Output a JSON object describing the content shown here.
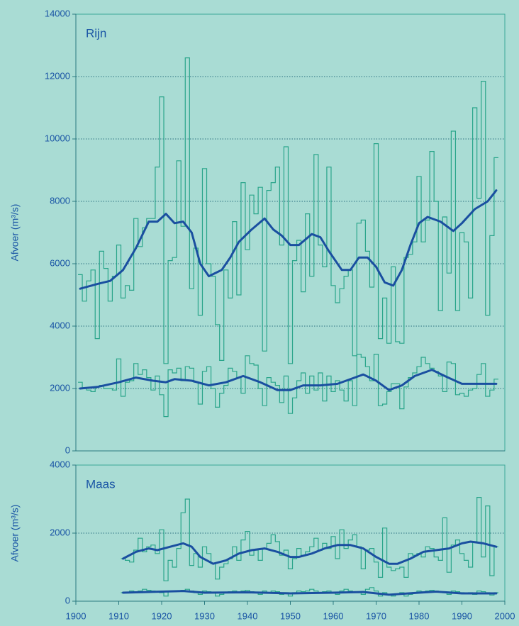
{
  "chart_data": [
    {
      "type": "line",
      "title": "Rijn",
      "ylabel": "Afvoer (m³/s)",
      "xlim": [
        1900,
        2000
      ],
      "ylim": [
        0,
        14000
      ],
      "yticks": [
        0,
        2000,
        4000,
        6000,
        8000,
        10000,
        12000,
        14000
      ],
      "grid": true,
      "series": [
        {
          "style": "step",
          "color": "#2aa58a",
          "x0": 1901,
          "values": [
            5650,
            4800,
            5450,
            5800,
            3600,
            6400,
            5850,
            4800,
            5600,
            6600,
            4900,
            5300,
            5150,
            7450,
            6550,
            7150,
            7450,
            7450,
            9100,
            11350,
            2800,
            6100,
            6200,
            9300,
            7200,
            12600,
            5200,
            6500,
            4350,
            9050,
            6000,
            5600,
            4050,
            2900,
            5800,
            4900,
            7350,
            5000,
            8600,
            6450,
            8200,
            7600,
            8450,
            3200,
            8350,
            8600,
            9100,
            6600,
            9750,
            2800,
            6100,
            6750,
            5100,
            7600,
            5600,
            9500,
            6600,
            5900,
            9100,
            5300,
            4750,
            5200,
            5600,
            5800,
            3050,
            7300,
            7400,
            6400,
            5250,
            9850,
            3600,
            4900,
            3450,
            5900,
            3500,
            3450,
            6200,
            6300,
            6700,
            8800,
            6700,
            7400,
            9600,
            8000,
            4500,
            7500,
            5700,
            10250,
            4500,
            7000,
            6700,
            4900,
            11000,
            8100,
            11850,
            4350,
            6900,
            9400
          ]
        },
        {
          "style": "step",
          "color": "#2aa58a",
          "x0": 1901,
          "values": [
            2200,
            2000,
            1950,
            1900,
            2050,
            2100,
            2000,
            2000,
            1950,
            2950,
            1750,
            2200,
            2250,
            2800,
            2450,
            2600,
            2350,
            1950,
            2400,
            1800,
            1100,
            2600,
            2500,
            2650,
            2250,
            2700,
            2650,
            2200,
            1500,
            2550,
            2700,
            2000,
            1400,
            1850,
            2100,
            2650,
            2550,
            2350,
            1850,
            3050,
            2800,
            2750,
            2000,
            1450,
            2350,
            2200,
            2100,
            1550,
            2400,
            1200,
            1700,
            2250,
            2500,
            1850,
            2400,
            1950,
            2500,
            1600,
            2400,
            1900,
            2250,
            1950,
            1600,
            2250,
            1450,
            3100,
            3000,
            2700,
            2250,
            3100,
            1450,
            1500,
            1900,
            2150,
            2150,
            1350,
            2050,
            2350,
            2500,
            2700,
            3000,
            2800,
            2650,
            2550,
            2400,
            1900,
            2850,
            2800,
            1800,
            1850,
            1750,
            1950,
            2000,
            2450,
            2800,
            1750,
            1950,
            2300
          ]
        },
        {
          "style": "smooth",
          "color": "#1a4fa0",
          "x": [
            1901,
            1905,
            1908,
            1911,
            1914,
            1917,
            1919,
            1921,
            1923,
            1925,
            1927,
            1929,
            1931,
            1934,
            1936,
            1938,
            1941,
            1944,
            1946,
            1948,
            1950,
            1952,
            1955,
            1957,
            1959,
            1962,
            1964,
            1966,
            1968,
            1970,
            1972,
            1974,
            1976,
            1978,
            1980,
            1982,
            1985,
            1988,
            1990,
            1993,
            1996,
            1998
          ],
          "values": [
            5200,
            5350,
            5450,
            5800,
            6500,
            7350,
            7350,
            7600,
            7300,
            7350,
            7000,
            6000,
            5600,
            5800,
            6200,
            6700,
            7100,
            7450,
            7100,
            6900,
            6600,
            6600,
            6950,
            6850,
            6400,
            5800,
            5800,
            6200,
            6200,
            5900,
            5400,
            5300,
            5800,
            6600,
            7300,
            7500,
            7350,
            7050,
            7300,
            7750,
            8000,
            8350
          ]
        },
        {
          "style": "smooth",
          "color": "#1a4fa0",
          "x": [
            1901,
            1905,
            1910,
            1914,
            1918,
            1921,
            1923,
            1927,
            1931,
            1935,
            1939,
            1943,
            1947,
            1950,
            1953,
            1957,
            1961,
            1963,
            1967,
            1970,
            1973,
            1976,
            1979,
            1983,
            1986,
            1990,
            1994,
            1998
          ],
          "values": [
            2000,
            2050,
            2200,
            2350,
            2250,
            2200,
            2300,
            2250,
            2100,
            2200,
            2400,
            2200,
            1950,
            1950,
            2100,
            2100,
            2150,
            2250,
            2450,
            2250,
            1950,
            2100,
            2400,
            2600,
            2400,
            2150,
            2150,
            2150
          ]
        }
      ]
    },
    {
      "type": "line",
      "title": "Maas",
      "ylabel": "Afvoer (m³/s)",
      "xlim": [
        1900,
        2000
      ],
      "ylim": [
        0,
        4000
      ],
      "xticks": [
        1900,
        1910,
        1920,
        1930,
        1940,
        1950,
        1960,
        1970,
        1980,
        1990,
        2000
      ],
      "yticks": [
        0,
        2000,
        4000
      ],
      "grid": true,
      "series": [
        {
          "style": "step",
          "color": "#2aa58a",
          "x0": 1911,
          "values": [
            1250,
            1200,
            1150,
            1500,
            1850,
            1450,
            1600,
            1650,
            1400,
            2100,
            600,
            1200,
            1000,
            1550,
            2600,
            3000,
            1050,
            1400,
            1000,
            1600,
            1400,
            1100,
            650,
            1000,
            1100,
            1250,
            1600,
            1200,
            1800,
            2050,
            1350,
            1500,
            1200,
            1550,
            1700,
            1950,
            1750,
            1350,
            1500,
            950,
            1250,
            1550,
            1350,
            1450,
            1600,
            1850,
            1500,
            1700,
            1550,
            1900,
            1250,
            2100,
            1550,
            1800,
            1950,
            1600,
            950,
            1500,
            1550,
            1150,
            700,
            2150,
            1000,
            900,
            950,
            1000,
            700,
            1400,
            1350,
            1400,
            1300,
            1600,
            1550,
            1300,
            1200,
            2450,
            850,
            1650,
            1800,
            1400,
            1200,
            1000,
            1750,
            3050,
            1300,
            2800,
            750,
            1600
          ]
        },
        {
          "style": "step",
          "color": "#2aa58a",
          "x0": 1911,
          "values": [
            250,
            250,
            300,
            280,
            300,
            350,
            320,
            300,
            280,
            250,
            150,
            300,
            280,
            300,
            320,
            350,
            300,
            250,
            200,
            300,
            280,
            250,
            150,
            200,
            250,
            280,
            300,
            250,
            300,
            320,
            280,
            250,
            200,
            300,
            250,
            300,
            280,
            200,
            250,
            150,
            250,
            300,
            280,
            300,
            350,
            300,
            250,
            280,
            300,
            250,
            200,
            300,
            350,
            300,
            280,
            250,
            200,
            350,
            400,
            300,
            150,
            250,
            200,
            150,
            200,
            250,
            150,
            200,
            250,
            300,
            280,
            300,
            320,
            300,
            280,
            250,
            200,
            300,
            280,
            250,
            220,
            250,
            200,
            300,
            280,
            250,
            180,
            250
          ]
        },
        {
          "style": "smooth",
          "color": "#1a4fa0",
          "x": [
            1911,
            1914,
            1917,
            1919,
            1922,
            1925,
            1927,
            1929,
            1932,
            1935,
            1938,
            1941,
            1944,
            1947,
            1950,
            1952,
            1955,
            1958,
            1961,
            1964,
            1967,
            1970,
            1973,
            1975,
            1978,
            1981,
            1984,
            1987,
            1990,
            1992,
            1995,
            1998
          ],
          "values": [
            1250,
            1450,
            1550,
            1500,
            1600,
            1700,
            1600,
            1300,
            1100,
            1200,
            1400,
            1500,
            1550,
            1450,
            1300,
            1300,
            1400,
            1550,
            1650,
            1650,
            1550,
            1300,
            1100,
            1100,
            1250,
            1450,
            1500,
            1550,
            1700,
            1750,
            1700,
            1600
          ]
        },
        {
          "style": "smooth",
          "color": "#1a4fa0",
          "x": [
            1911,
            1920,
            1925,
            1930,
            1940,
            1950,
            1960,
            1967,
            1973,
            1980,
            1984,
            1990,
            1998
          ],
          "values": [
            250,
            280,
            300,
            250,
            260,
            230,
            250,
            270,
            190,
            250,
            280,
            230,
            230
          ]
        }
      ]
    }
  ]
}
